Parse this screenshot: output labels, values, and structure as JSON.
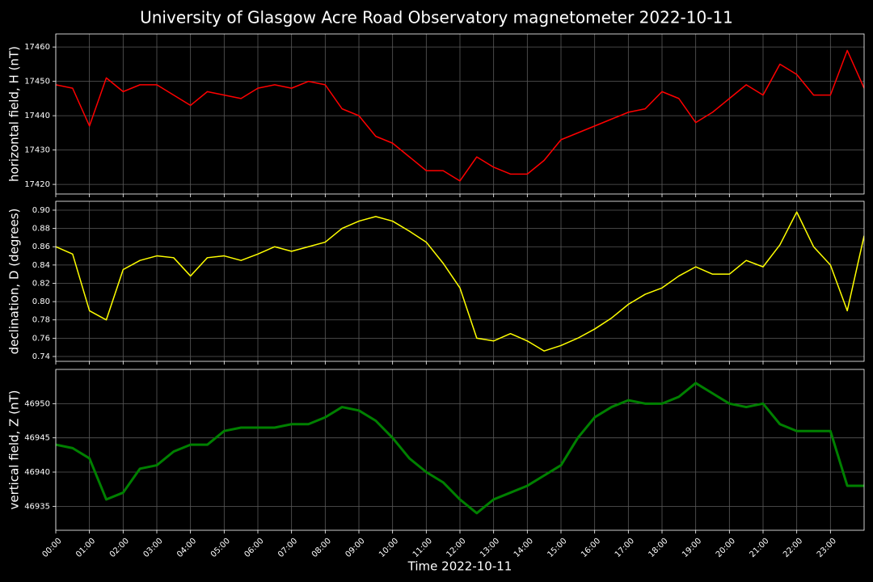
{
  "title": "University of Glasgow Acre Road Observatory magnetometer 2022-10-11",
  "x_axis": {
    "label": "Time 2022-10-11",
    "lim": [
      0,
      24
    ],
    "ticks": [
      {
        "value": 0,
        "label": "00:00"
      },
      {
        "value": 1,
        "label": "01:00"
      },
      {
        "value": 2,
        "label": "02:00"
      },
      {
        "value": 3,
        "label": "03:00"
      },
      {
        "value": 4,
        "label": "04:00"
      },
      {
        "value": 5,
        "label": "05:00"
      },
      {
        "value": 6,
        "label": "06:00"
      },
      {
        "value": 7,
        "label": "07:00"
      },
      {
        "value": 8,
        "label": "08:00"
      },
      {
        "value": 9,
        "label": "09:00"
      },
      {
        "value": 10,
        "label": "10:00"
      },
      {
        "value": 11,
        "label": "11:00"
      },
      {
        "value": 12,
        "label": "12:00"
      },
      {
        "value": 13,
        "label": "13:00"
      },
      {
        "value": 14,
        "label": "14:00"
      },
      {
        "value": 15,
        "label": "15:00"
      },
      {
        "value": 16,
        "label": "16:00"
      },
      {
        "value": 17,
        "label": "17:00"
      },
      {
        "value": 18,
        "label": "18:00"
      },
      {
        "value": 19,
        "label": "19:00"
      },
      {
        "value": 20,
        "label": "20:00"
      },
      {
        "value": 21,
        "label": "21:00"
      },
      {
        "value": 22,
        "label": "22:00"
      },
      {
        "value": 23,
        "label": "23:00"
      }
    ],
    "x": [
      0,
      0.5,
      1,
      1.5,
      2,
      2.5,
      3,
      3.5,
      4,
      4.5,
      5,
      5.5,
      6,
      6.5,
      7,
      7.5,
      8,
      8.5,
      9,
      9.5,
      10,
      10.5,
      11,
      11.5,
      12,
      12.5,
      13,
      13.5,
      14,
      14.5,
      15,
      15.5,
      16,
      16.5,
      17,
      17.5,
      18,
      18.5,
      19,
      19.5,
      20,
      20.5,
      21,
      21.5,
      22,
      22.5,
      23,
      23.5,
      24
    ]
  },
  "chart_data": [
    {
      "type": "line",
      "ylabel": "horizontal field, H (nT)",
      "ylim": [
        17417.2,
        17463.8
      ],
      "yticks": [
        17420,
        17430,
        17440,
        17450,
        17460
      ],
      "grid": true,
      "series": [
        {
          "color": "#ff0000",
          "width": 1.5,
          "values": [
            17449,
            17448,
            17437,
            17451,
            17447,
            17449,
            17449,
            17446,
            17443,
            17447,
            17446,
            17445,
            17448,
            17449,
            17448,
            17450,
            17449,
            17442,
            17440,
            17434,
            17432,
            17428,
            17424,
            17424,
            17421,
            17428,
            17425,
            17423,
            17423,
            17427,
            17433,
            17435,
            17437,
            17439,
            17441,
            17442,
            17447,
            17445,
            17438,
            17441,
            17445,
            17449,
            17446,
            17455,
            17452,
            17446,
            17446,
            17459,
            17448
          ]
        }
      ]
    },
    {
      "type": "line",
      "ylabel": "declination, D (degrees)",
      "ylim": [
        0.7347,
        0.9097
      ],
      "yticks": [
        0.74,
        0.76,
        0.78,
        {
          "value": 0.8,
          "label": "0.80"
        },
        0.82,
        0.84,
        0.86,
        0.88,
        {
          "value": 0.9,
          "label": "0.90"
        }
      ],
      "grid": true,
      "series": [
        {
          "color": "#ffff00",
          "width": 1.5,
          "values": [
            0.86,
            0.852,
            0.79,
            0.78,
            0.835,
            0.845,
            0.85,
            0.848,
            0.828,
            0.848,
            0.85,
            0.845,
            0.852,
            0.86,
            0.855,
            0.86,
            0.865,
            0.88,
            0.888,
            0.893,
            0.888,
            0.877,
            0.865,
            0.842,
            0.815,
            0.76,
            0.757,
            0.765,
            0.757,
            0.746,
            0.752,
            0.76,
            0.77,
            0.782,
            0.797,
            0.808,
            0.815,
            0.828,
            0.838,
            0.83,
            0.83,
            0.845,
            0.838,
            0.862,
            0.898,
            0.86,
            0.84,
            0.79,
            0.872
          ]
        }
      ]
    },
    {
      "type": "line",
      "ylabel": "vertical field, Z (nT)",
      "ylim": [
        46931.5,
        46955
      ],
      "yticks": [
        46935,
        46940,
        46945,
        46950
      ],
      "grid": true,
      "series": [
        {
          "color": "#008000",
          "width": 3,
          "values": [
            46944,
            46943.5,
            46942,
            46936,
            46937,
            46940.5,
            46941,
            46943,
            46944,
            46944,
            46946,
            46946.5,
            46946.5,
            46946.5,
            46947,
            46947,
            46948,
            46949.5,
            46949,
            46947.5,
            46945,
            46942,
            46940,
            46938.5,
            46936,
            46934,
            46936,
            46937,
            46938,
            46939.5,
            46941,
            46945,
            46948,
            46949.5,
            46950.5,
            46950,
            46950,
            46951,
            46953,
            46951.5,
            46950,
            46949.5,
            46950,
            46947,
            46946,
            46946,
            46946,
            46938,
            46938
          ]
        }
      ]
    }
  ]
}
